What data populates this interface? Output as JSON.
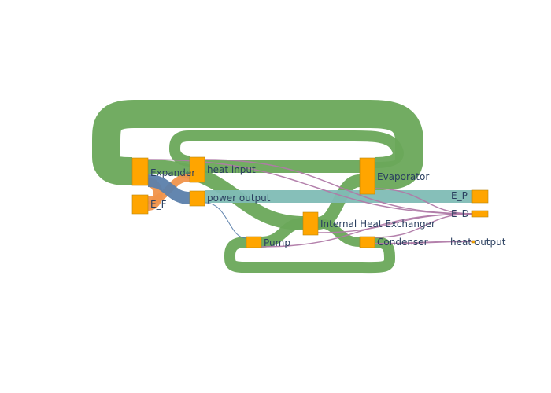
{
  "chart_data": {
    "type": "sankey",
    "nodes": [
      {
        "id": "evaporator",
        "label": "Evaporator",
        "color": "#ffa500"
      },
      {
        "id": "expander",
        "label": "Expander",
        "color": "#ffa500"
      },
      {
        "id": "ihx",
        "label": "Internal Heat Exchanger",
        "color": "#ffa500"
      },
      {
        "id": "condenser",
        "label": "Condenser",
        "color": "#ffa500"
      },
      {
        "id": "pump",
        "label": "Pump",
        "color": "#ffa500"
      },
      {
        "id": "heat_input",
        "label": "heat input",
        "color": "#ffa500"
      },
      {
        "id": "power_output",
        "label": "power output",
        "color": "#ffa500"
      },
      {
        "id": "heat_output",
        "label": "heat output",
        "color": "#ffa500"
      },
      {
        "id": "E_F",
        "label": "E_F",
        "color": "#ffa500"
      },
      {
        "id": "E_P",
        "label": "E_P",
        "color": "#ffa500"
      },
      {
        "id": "E_D",
        "label": "E_D",
        "color": "#ffa500"
      }
    ],
    "links": [
      {
        "source": "evaporator",
        "target": "expander",
        "value": 4.3,
        "color": "#6aa85a"
      },
      {
        "source": "expander",
        "target": "ihx",
        "value": 2.4,
        "color": "#6aa85a"
      },
      {
        "source": "ihx",
        "target": "condenser",
        "value": 1.8,
        "color": "#6aa85a"
      },
      {
        "source": "condenser",
        "target": "pump",
        "value": 1.4,
        "color": "#6aa85a"
      },
      {
        "source": "pump",
        "target": "ihx",
        "value": 1.6,
        "color": "#6aa85a"
      },
      {
        "source": "ihx",
        "target": "evaporator",
        "value": 2.2,
        "color": "#6aa85a"
      },
      {
        "source": "heat_input",
        "target": "evaporator",
        "value": 2.0,
        "color": "#6aa85a"
      },
      {
        "source": "expander",
        "target": "power_output",
        "value": 1.2,
        "color": "#5b7fab"
      },
      {
        "source": "E_F",
        "target": "expander",
        "value": 1.0,
        "color": "#f0944b"
      },
      {
        "source": "E_F",
        "target": "heat_input",
        "value": 0.8,
        "color": "#f0944b"
      },
      {
        "source": "power_output",
        "target": "E_P",
        "value": 0.9,
        "color": "#7fbcb5"
      },
      {
        "source": "power_output",
        "target": "pump",
        "value": 0.1,
        "color": "#5b7fab"
      },
      {
        "source": "expander",
        "target": "E_D",
        "value": 0.1,
        "color": "#b07aa8"
      },
      {
        "source": "heat_input",
        "target": "E_D",
        "value": 0.1,
        "color": "#b07aa8"
      },
      {
        "source": "evaporator",
        "target": "E_D",
        "value": 0.1,
        "color": "#b07aa8"
      },
      {
        "source": "ihx",
        "target": "E_D",
        "value": 0.1,
        "color": "#b07aa8"
      },
      {
        "source": "condenser",
        "target": "E_D",
        "value": 0.1,
        "color": "#b07aa8"
      },
      {
        "source": "pump",
        "target": "E_D",
        "value": 0.1,
        "color": "#b07aa8"
      },
      {
        "source": "condenser",
        "target": "heat_output",
        "value": 0.2,
        "color": "#b07aa8"
      }
    ]
  }
}
